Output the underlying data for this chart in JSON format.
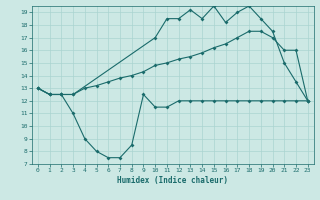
{
  "xlabel": "Humidex (Indice chaleur)",
  "bg_color": "#cce8e4",
  "grid_color": "#aad4d0",
  "line_color": "#1a6b6b",
  "xlim": [
    -0.5,
    23.5
  ],
  "ylim": [
    7,
    19.5
  ],
  "xticks": [
    0,
    1,
    2,
    3,
    4,
    5,
    6,
    7,
    8,
    9,
    10,
    11,
    12,
    13,
    14,
    15,
    16,
    17,
    18,
    19,
    20,
    21,
    22,
    23
  ],
  "yticks": [
    7,
    8,
    9,
    10,
    11,
    12,
    13,
    14,
    15,
    16,
    17,
    18,
    19
  ],
  "line1_x": [
    0,
    1,
    2,
    3,
    10,
    11,
    12,
    13,
    14,
    15,
    16,
    17,
    18,
    19,
    20,
    21,
    22,
    23
  ],
  "line1_y": [
    13,
    12.5,
    12.5,
    12.5,
    17.0,
    18.5,
    18.5,
    19.2,
    18.5,
    19.5,
    18.2,
    19.0,
    19.5,
    18.5,
    17.5,
    15.0,
    13.5,
    12.0
  ],
  "line2_x": [
    0,
    1,
    2,
    3,
    4,
    5,
    6,
    7,
    8,
    9,
    10,
    11,
    12,
    13,
    14,
    15,
    16,
    17,
    18,
    19,
    20,
    21,
    22,
    23
  ],
  "line2_y": [
    13.0,
    12.5,
    12.5,
    12.5,
    13.0,
    13.2,
    13.5,
    13.8,
    14.0,
    14.3,
    14.8,
    15.0,
    15.3,
    15.5,
    15.8,
    16.2,
    16.5,
    17.0,
    17.5,
    17.5,
    17.0,
    16.0,
    16.0,
    12.0
  ],
  "line3_x": [
    0,
    1,
    2,
    3,
    4,
    5,
    6,
    7,
    8,
    9,
    10,
    11,
    12,
    13,
    14,
    15,
    16,
    17,
    18,
    19,
    20,
    21,
    22,
    23
  ],
  "line3_y": [
    13.0,
    12.5,
    12.5,
    11.0,
    9.0,
    8.0,
    7.5,
    7.5,
    8.5,
    12.5,
    11.5,
    11.5,
    12.0,
    12.0,
    12.0,
    12.0,
    12.0,
    12.0,
    12.0,
    12.0,
    12.0,
    12.0,
    12.0,
    12.0
  ]
}
